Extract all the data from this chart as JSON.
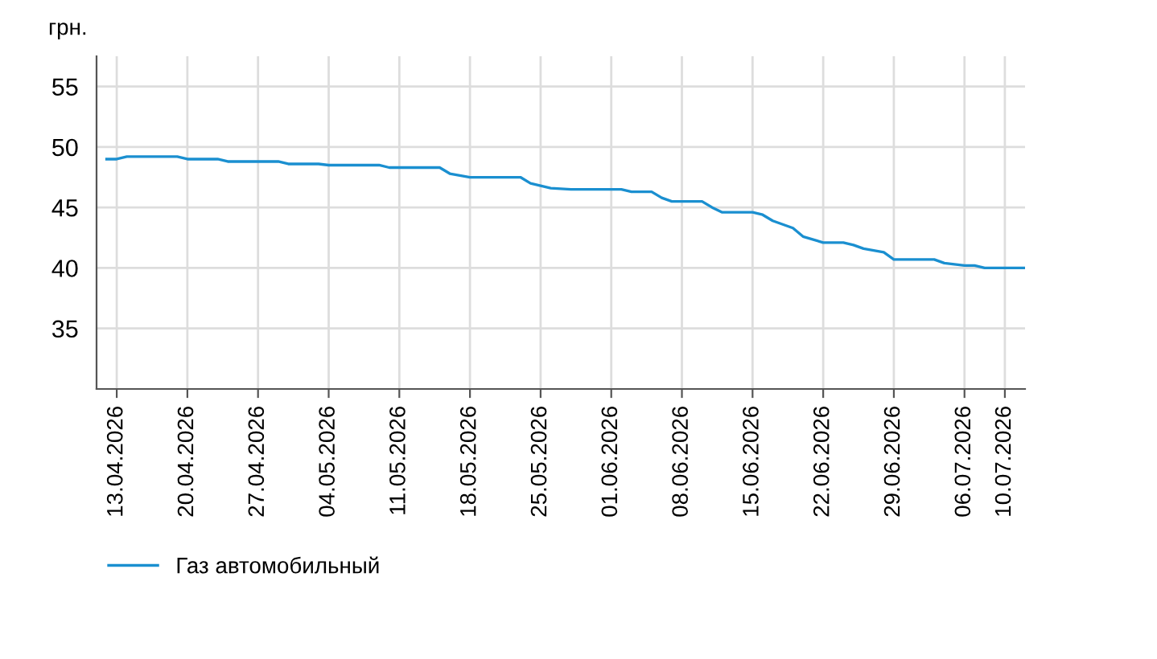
{
  "chart_data": {
    "type": "line",
    "ylabel": "грн.",
    "x": [
      "2026-04-12",
      "2026-04-13",
      "2026-04-14",
      "2026-04-19",
      "2026-04-20",
      "2026-04-23",
      "2026-04-24",
      "2026-04-29",
      "2026-04-30",
      "2026-05-03",
      "2026-05-04",
      "2026-05-09",
      "2026-05-10",
      "2026-05-15",
      "2026-05-16",
      "2026-05-18",
      "2026-05-23",
      "2026-05-24",
      "2026-05-26",
      "2026-05-28",
      "2026-06-02",
      "2026-06-03",
      "2026-06-05",
      "2026-06-06",
      "2026-06-07",
      "2026-06-10",
      "2026-06-11",
      "2026-06-12",
      "2026-06-15",
      "2026-06-16",
      "2026-06-17",
      "2026-06-19",
      "2026-06-20",
      "2026-06-22",
      "2026-06-24",
      "2026-06-25",
      "2026-06-26",
      "2026-06-28",
      "2026-06-29",
      "2026-07-03",
      "2026-07-04",
      "2026-07-06",
      "2026-07-07",
      "2026-07-08",
      "2026-07-12"
    ],
    "series": [
      {
        "name": "Газ автомобильный",
        "color": "#1a8fd0",
        "values": [
          49.0,
          49.0,
          49.2,
          49.2,
          49.0,
          49.0,
          48.8,
          48.8,
          48.6,
          48.6,
          48.5,
          48.5,
          48.3,
          48.3,
          47.8,
          47.5,
          47.5,
          47.0,
          46.6,
          46.5,
          46.5,
          46.3,
          46.3,
          45.8,
          45.5,
          45.5,
          45.0,
          44.6,
          44.6,
          44.4,
          43.9,
          43.3,
          42.6,
          42.1,
          42.1,
          41.9,
          41.6,
          41.3,
          40.7,
          40.7,
          40.4,
          40.2,
          40.2,
          40.0,
          40.0
        ]
      }
    ],
    "xlim": [
      "2026-04-11",
      "2026-07-12"
    ],
    "xticks": [
      {
        "value": "2026-04-13",
        "label": "13.04.2026"
      },
      {
        "value": "2026-04-20",
        "label": "20.04.2026"
      },
      {
        "value": "2026-04-27",
        "label": "27.04.2026"
      },
      {
        "value": "2026-05-04",
        "label": "04.05.2026"
      },
      {
        "value": "2026-05-11",
        "label": "11.05.2026"
      },
      {
        "value": "2026-05-18",
        "label": "18.05.2026"
      },
      {
        "value": "2026-05-25",
        "label": "25.05.2026"
      },
      {
        "value": "2026-06-01",
        "label": "01.06.2026"
      },
      {
        "value": "2026-06-08",
        "label": "08.06.2026"
      },
      {
        "value": "2026-06-15",
        "label": "15.06.2026"
      },
      {
        "value": "2026-06-22",
        "label": "22.06.2026"
      },
      {
        "value": "2026-06-29",
        "label": "29.06.2026"
      },
      {
        "value": "2026-07-06",
        "label": "06.07.2026"
      },
      {
        "value": "2026-07-10",
        "label": "10.07.2026"
      }
    ],
    "ylim": [
      30,
      57.5
    ],
    "yticks": [
      35,
      40,
      45,
      50,
      55
    ],
    "grid": true,
    "legend": "bottom left"
  }
}
